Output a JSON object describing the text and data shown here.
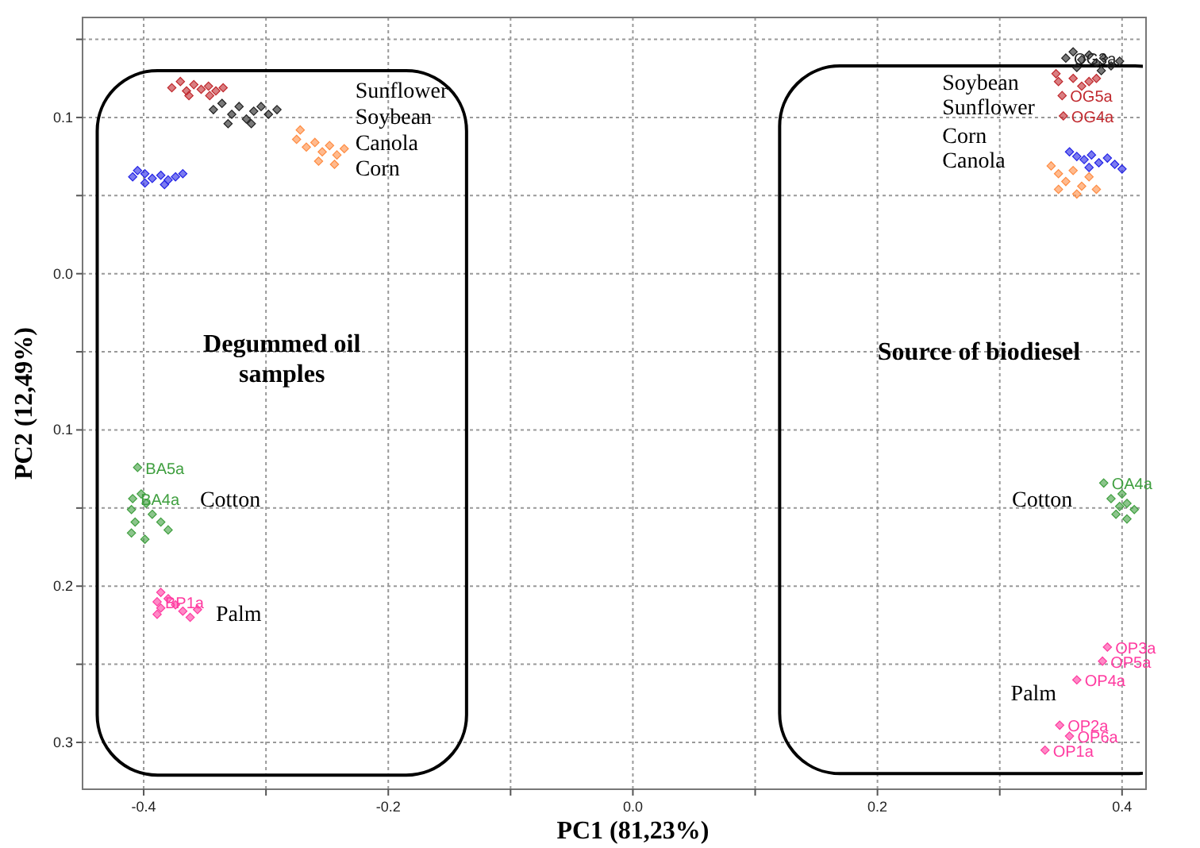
{
  "chart_data": {
    "type": "scatter",
    "xlabel": "PC1 (81,23%)",
    "ylabel": "PC2 (12,49%)",
    "xlim": [
      -0.45,
      0.417
    ],
    "ylim": [
      -0.33,
      0.164
    ],
    "xticks": [
      -0.4,
      {
        "value": -0.3,
        "label": null
      },
      -0.2,
      {
        "value": -0.1,
        "label": null
      },
      {
        "value": 0,
        "label": "0.0"
      },
      {
        "value": 0.1,
        "label": null
      },
      0.2,
      {
        "value": 0.3,
        "label": null
      },
      0.4
    ],
    "yticks": [
      {
        "value": 0.15,
        "label": null
      },
      0.1,
      {
        "value": 0.05,
        "label": null
      },
      {
        "value": 0,
        "label": "0.0"
      },
      {
        "value": -0.05,
        "label": null
      },
      {
        "value": -0.1,
        "label": "0.1"
      },
      {
        "value": -0.15,
        "label": null
      },
      {
        "value": -0.2,
        "label": "0.2"
      },
      {
        "value": -0.25,
        "label": null
      },
      {
        "value": -0.3,
        "label": "0.3"
      }
    ],
    "grid": true,
    "marker": "diamond",
    "series": [
      {
        "color": "#c0282d",
        "x": [
          -0.377,
          -0.37,
          -0.365,
          -0.359,
          -0.353,
          -0.347,
          -0.341,
          -0.335,
          -0.363,
          -0.346,
          0.346,
          0.348,
          0.351,
          0.352,
          0.36,
          0.367,
          0.373,
          0.379
        ],
        "values": [
          0.119,
          0.123,
          0.117,
          0.121,
          0.118,
          0.12,
          0.117,
          0.119,
          0.114,
          0.114,
          0.128,
          0.123,
          0.114,
          0.101,
          0.125,
          0.12,
          0.123,
          0.125
        ],
        "value_labels": [
          null,
          null,
          null,
          null,
          null,
          null,
          null,
          null,
          null,
          null,
          null,
          null,
          "OG5a",
          "OG4a",
          null,
          null,
          null,
          null
        ]
      },
      {
        "color": "#202020",
        "x": [
          -0.343,
          -0.336,
          -0.328,
          -0.322,
          -0.316,
          -0.31,
          -0.304,
          -0.298,
          -0.291,
          -0.331,
          -0.312,
          0.354,
          0.36,
          0.367,
          0.373,
          0.379,
          0.385,
          0.391,
          0.398,
          0.363,
          0.383
        ],
        "values": [
          0.105,
          0.109,
          0.102,
          0.107,
          0.099,
          0.104,
          0.107,
          0.102,
          0.105,
          0.096,
          0.096,
          0.138,
          0.142,
          0.137,
          0.14,
          0.135,
          0.138,
          0.133,
          0.136,
          0.132,
          0.13
        ],
        "value_labels": [
          null,
          null,
          null,
          null,
          null,
          null,
          null,
          null,
          null,
          null,
          null,
          "OG3a",
          null,
          null,
          null,
          null,
          null,
          null,
          null,
          null,
          null
        ]
      },
      {
        "color": "#ff8c42",
        "x": [
          -0.275,
          -0.272,
          -0.267,
          -0.26,
          -0.254,
          -0.248,
          -0.242,
          -0.236,
          -0.257,
          -0.244,
          0.342,
          0.348,
          0.354,
          0.36,
          0.367,
          0.373,
          0.379,
          0.348,
          0.363
        ],
        "values": [
          0.086,
          0.092,
          0.081,
          0.084,
          0.078,
          0.082,
          0.076,
          0.08,
          0.072,
          0.07,
          0.069,
          0.064,
          0.059,
          0.066,
          0.056,
          0.062,
          0.054,
          0.054,
          0.051
        ]
      },
      {
        "color": "#2323e6",
        "x": [
          -0.409,
          -0.405,
          -0.399,
          -0.393,
          -0.386,
          -0.38,
          -0.374,
          -0.368,
          -0.399,
          -0.383,
          0.357,
          0.363,
          0.369,
          0.375,
          0.381,
          0.388,
          0.394,
          0.4,
          0.373
        ],
        "values": [
          0.062,
          0.066,
          0.064,
          0.061,
          0.063,
          0.06,
          0.062,
          0.064,
          0.058,
          0.057,
          0.078,
          0.075,
          0.073,
          0.076,
          0.071,
          0.074,
          0.07,
          0.067,
          0.068
        ]
      },
      {
        "color": "#3f9f3f",
        "x": [
          -0.405,
          -0.409,
          -0.41,
          -0.407,
          -0.41,
          -0.402,
          -0.398,
          -0.393,
          -0.386,
          -0.38,
          -0.399,
          0.385,
          0.391,
          0.398,
          0.404,
          0.395,
          0.404,
          0.41,
          0.4
        ],
        "values": [
          -0.124,
          -0.144,
          -0.151,
          -0.159,
          -0.166,
          -0.141,
          -0.147,
          -0.154,
          -0.159,
          -0.164,
          -0.17,
          -0.134,
          -0.144,
          -0.149,
          -0.147,
          -0.154,
          -0.157,
          -0.151,
          -0.141
        ],
        "value_labels": [
          "BA5a",
          "BA4a",
          null,
          null,
          null,
          null,
          null,
          null,
          null,
          null,
          null,
          "OA4a",
          null,
          null,
          null,
          null,
          null,
          null,
          null
        ]
      },
      {
        "color": "#ff3aa0",
        "x": [
          -0.386,
          -0.389,
          -0.389,
          -0.386,
          -0.38,
          -0.374,
          -0.368,
          -0.362,
          -0.356,
          0.388,
          0.384,
          0.363,
          0.349,
          0.337,
          0.357
        ],
        "values": [
          -0.204,
          -0.21,
          -0.218,
          -0.214,
          -0.208,
          -0.212,
          -0.216,
          -0.22,
          -0.215,
          -0.239,
          -0.248,
          -0.26,
          -0.289,
          -0.305,
          -0.296
        ],
        "value_labels": [
          null,
          "BP1a",
          null,
          null,
          null,
          null,
          null,
          null,
          null,
          "OP3a",
          "OP5a",
          "OP4a",
          "OP2a",
          "OP1a",
          "OP6a"
        ]
      }
    ],
    "annotations": [
      "Degummed oil\nsamples",
      "Source of biodiesel",
      "Sunflower",
      "Soybean",
      "Canola",
      "Corn",
      "Soybean",
      "Sunflower",
      "Corn",
      "Canola",
      "Cotton",
      "Cotton",
      "Palm",
      "Palm"
    ]
  }
}
